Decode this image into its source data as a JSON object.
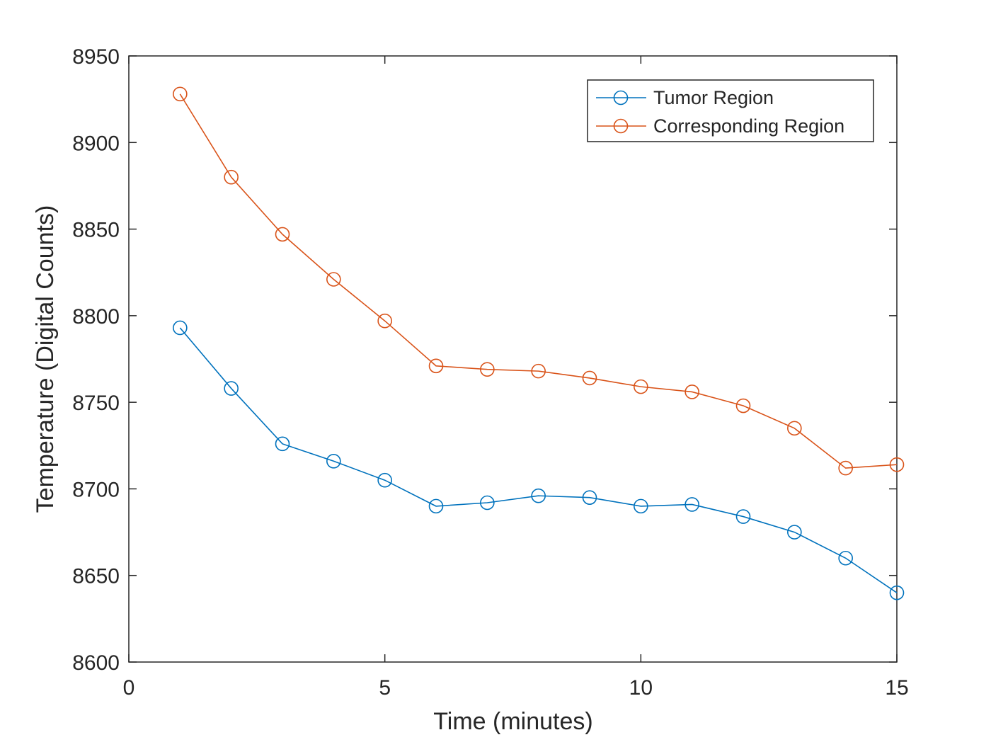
{
  "chart_data": {
    "type": "line",
    "title": "",
    "xlabel": "Time (minutes)",
    "ylabel": "Temperature (Digital Counts)",
    "xlim": [
      0,
      15
    ],
    "ylim": [
      8600,
      8950
    ],
    "x_ticks": [
      0,
      5,
      10,
      15
    ],
    "y_ticks": [
      8600,
      8650,
      8700,
      8750,
      8800,
      8850,
      8900,
      8950
    ],
    "grid": false,
    "legend_position": "top-right",
    "marker": "open-circle",
    "x": [
      1,
      2,
      3,
      4,
      5,
      6,
      7,
      8,
      9,
      10,
      11,
      12,
      13,
      14,
      15
    ],
    "series": [
      {
        "name": "Tumor Region",
        "color": "#0072BD",
        "values": [
          8793,
          8758,
          8726,
          8716,
          8705,
          8690,
          8692,
          8696,
          8695,
          8690,
          8691,
          8684,
          8675,
          8660,
          8640
        ]
      },
      {
        "name": "Corresponding Region",
        "color": "#D95319",
        "values": [
          8928,
          8880,
          8847,
          8821,
          8797,
          8771,
          8769,
          8768,
          8764,
          8759,
          8756,
          8748,
          8735,
          8712,
          8714
        ]
      }
    ]
  }
}
